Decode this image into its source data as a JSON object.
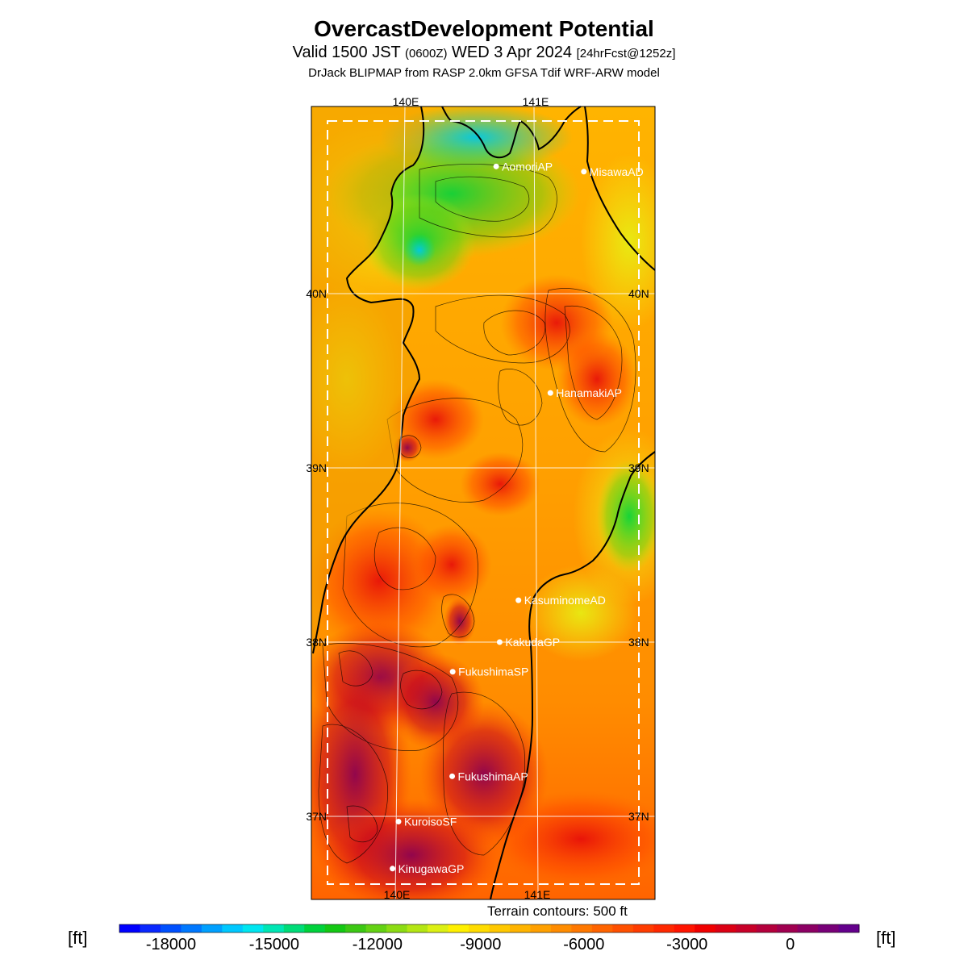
{
  "title": "OvercastDevelopment Potential",
  "subtitle": {
    "pre": "Valid 1500 JST ",
    "utc": "(0600Z)",
    "mid": " WED 3 Apr 2024 ",
    "fcst": "[24hrFcst@1252z]"
  },
  "model_line": "DrJack BLIPMAP from RASP 2.0km GFSA Tdif WRF-ARW model",
  "lon_labels": [
    "140E",
    "141E"
  ],
  "lat_labels": [
    "40N",
    "39N",
    "38N",
    "37N"
  ],
  "stations": [
    {
      "name": "AomoriAP",
      "lon": 140.69,
      "lat": 40.73
    },
    {
      "name": "MisawaAD",
      "lon": 141.37,
      "lat": 40.7
    },
    {
      "name": "HanamakiAP",
      "lon": 141.14,
      "lat": 39.43
    },
    {
      "name": "KasuminomeAD",
      "lon": 140.92,
      "lat": 38.24
    },
    {
      "name": "KakudaGP",
      "lon": 140.78,
      "lat": 38.0
    },
    {
      "name": "FukushimaSP",
      "lon": 140.42,
      "lat": 37.83
    },
    {
      "name": "FukushimaAP",
      "lon": 140.43,
      "lat": 37.23
    },
    {
      "name": "KuroisoSF",
      "lon": 140.02,
      "lat": 36.97
    },
    {
      "name": "KinugawaGP",
      "lon": 139.98,
      "lat": 36.7
    }
  ],
  "terrain_note": "Terrain contours: 500 ft",
  "colorbar": {
    "unit": "[ft]",
    "min": -19500,
    "max": 2000,
    "ticks": [
      {
        "value": -18000,
        "label": "-18000"
      },
      {
        "value": -15000,
        "label": "-15000"
      },
      {
        "value": -12000,
        "label": "-12000"
      },
      {
        "value": -9000,
        "label": "-9000"
      },
      {
        "value": -6000,
        "label": "-6000"
      },
      {
        "value": -3000,
        "label": "-3000"
      },
      {
        "value": 0,
        "label": "0"
      }
    ],
    "colors": [
      "#0000ff",
      "#0a28ff",
      "#0050ff",
      "#0078ff",
      "#00a0ff",
      "#00c8ff",
      "#00e6f0",
      "#00e6b4",
      "#00dc78",
      "#00d23c",
      "#14c814",
      "#3cc814",
      "#64d214",
      "#8cdc14",
      "#b4e614",
      "#dcf014",
      "#fff000",
      "#ffdc00",
      "#ffc800",
      "#ffb400",
      "#ffa000",
      "#ff8c00",
      "#ff7800",
      "#ff6400",
      "#ff5000",
      "#ff3c00",
      "#ff2800",
      "#ff1400",
      "#f00000",
      "#dc0014",
      "#c80028",
      "#b4003c",
      "#a00050",
      "#8c0064",
      "#780078",
      "#64008c"
    ]
  },
  "colors": {
    "land_outline": "#000000",
    "grid": "#ffffff",
    "station": "#ffffff"
  }
}
